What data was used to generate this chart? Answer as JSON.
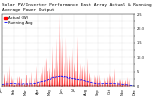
{
  "title": "Solar PV/Inverter Performance East Array Actual & Running Average Power Output",
  "legend1": "Actual (W)",
  "legend2": "Running Avg",
  "bg_color": "#ffffff",
  "plot_bg": "#ffffff",
  "bar_color": "#ff0000",
  "avg_color": "#0000ff",
  "grid_color": "#b0b0b0",
  "ylim": [
    0,
    2500
  ],
  "ytick_vals": [
    0,
    250,
    500,
    750,
    1000,
    1250,
    1500,
    1750,
    2000,
    2250,
    2500
  ],
  "ytick_labels": [
    "0",
    "",
    "5",
    "",
    "1E:3",
    "",
    "1.5",
    "",
    "2E:3",
    "",
    "2.5"
  ],
  "n_points": 500,
  "days": 80,
  "title_fontsize": 3.2,
  "legend_fontsize": 2.8,
  "tick_fontsize": 2.5,
  "avg_value": 350
}
